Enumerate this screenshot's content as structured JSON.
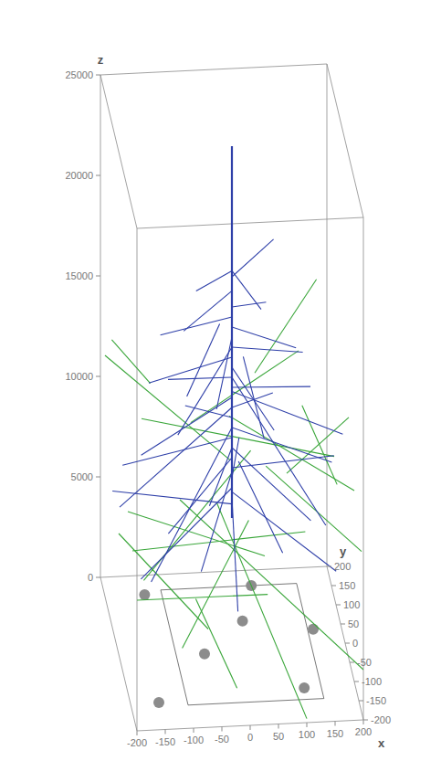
{
  "chart_data": {
    "type": "3d_line",
    "x_label": "x",
    "y_label": "y",
    "z_label": "z",
    "xlim": [
      -200,
      200
    ],
    "ylim": [
      -200,
      200
    ],
    "zlim": [
      0,
      25000
    ],
    "xticks": [
      -200,
      -150,
      -100,
      -50,
      0,
      50,
      100,
      150,
      200
    ],
    "yticks": [
      -200,
      -150,
      -100,
      -50,
      0,
      50,
      100,
      150,
      200
    ],
    "zticks": [
      0,
      5000,
      10000,
      15000,
      20000,
      25000
    ],
    "series": [
      {
        "color": "#2e3fa8",
        "segments": [
          [
            0,
            0,
            25000,
            0,
            0,
            6500
          ],
          [
            0,
            0,
            18800,
            -60,
            20,
            17500
          ],
          [
            0,
            0,
            18800,
            50,
            -10,
            17000
          ],
          [
            0,
            0,
            18500,
            80,
            40,
            19500
          ],
          [
            0,
            0,
            17800,
            -90,
            -30,
            16500
          ],
          [
            0,
            0,
            17000,
            70,
            60,
            16000
          ],
          [
            0,
            0,
            16500,
            -120,
            40,
            15000
          ],
          [
            0,
            0,
            16000,
            110,
            -20,
            15200
          ],
          [
            0,
            0,
            15500,
            -40,
            -80,
            13500
          ],
          [
            0,
            0,
            15000,
            130,
            30,
            14000
          ],
          [
            0,
            0,
            14500,
            -150,
            -20,
            13800
          ],
          [
            0,
            0,
            14000,
            60,
            -90,
            12500
          ],
          [
            0,
            0,
            13500,
            -100,
            80,
            12000
          ],
          [
            0,
            0,
            13000,
            150,
            70,
            11500
          ],
          [
            0,
            0,
            12500,
            -170,
            -60,
            11000
          ],
          [
            0,
            0,
            12000,
            90,
            110,
            10500
          ],
          [
            0,
            0,
            11500,
            -60,
            140,
            9500
          ],
          [
            0,
            0,
            11000,
            170,
            -40,
            9800
          ],
          [
            0,
            0,
            10500,
            -190,
            20,
            9000
          ],
          [
            0,
            0,
            10000,
            120,
            -120,
            8500
          ],
          [
            0,
            0,
            9500,
            -130,
            -110,
            8000
          ],
          [
            0,
            0,
            9000,
            190,
            60,
            8200
          ],
          [
            0,
            0,
            8800,
            -80,
            -160,
            7000
          ],
          [
            0,
            0,
            8500,
            40,
            170,
            7200
          ],
          [
            0,
            0,
            8000,
            -180,
            -120,
            6000
          ],
          [
            0,
            0,
            7800,
            160,
            -150,
            6500
          ],
          [
            0,
            0,
            7500,
            -20,
            -190,
            5500
          ],
          [
            0,
            0,
            7200,
            -195,
            100,
            6200
          ],
          [
            0,
            0,
            12000,
            -200,
            -10,
            7500
          ],
          [
            0,
            0,
            11000,
            -170,
            -170,
            6800
          ],
          [
            0,
            0,
            13500,
            140,
            -160,
            9000
          ],
          [
            20,
            0,
            14500,
            60,
            20,
            10000
          ],
          [
            -20,
            10,
            16000,
            -70,
            60,
            11500
          ],
          [
            10,
            -10,
            9500,
            80,
            -60,
            5800
          ],
          [
            0,
            0,
            10000,
            -30,
            60,
            6000
          ],
          [
            0,
            0,
            15000,
            -110,
            -90,
            12500
          ],
          [
            0,
            0,
            12800,
            195,
            -5,
            10500
          ]
        ]
      },
      {
        "color": "#3aa63a",
        "segments": [
          [
            -200,
            150,
            12000,
            0,
            20,
            9000
          ],
          [
            -200,
            -100,
            9000,
            50,
            -50,
            5500
          ],
          [
            -150,
            60,
            10500,
            200,
            120,
            7000
          ],
          [
            0,
            30,
            11000,
            200,
            -100,
            9500
          ],
          [
            -100,
            -50,
            8500,
            200,
            -200,
            2500
          ],
          [
            -200,
            -200,
            6500,
            60,
            -20,
            3000
          ],
          [
            -60,
            80,
            9800,
            150,
            200,
            10800
          ],
          [
            30,
            -20,
            10200,
            -180,
            -150,
            6500
          ],
          [
            50,
            60,
            12500,
            180,
            190,
            14500
          ],
          [
            -200,
            0,
            6000,
            -50,
            -50,
            2000
          ],
          [
            -80,
            -100,
            4500,
            -20,
            -180,
            1500
          ],
          [
            -200,
            -150,
            8000,
            120,
            -60,
            6800
          ],
          [
            100,
            20,
            8200,
            200,
            -40,
            12000
          ],
          [
            -180,
            200,
            11800,
            -120,
            150,
            10500
          ],
          [
            20,
            -60,
            7500,
            -120,
            -200,
            4000
          ],
          [
            60,
            0,
            9000,
            200,
            -180,
            8000
          ],
          [
            -20,
            40,
            6500,
            100,
            -200,
            200
          ],
          [
            140,
            100,
            10000,
            160,
            -160,
            11000
          ]
        ]
      }
    ],
    "detectors": {
      "color": "#8c8c8c",
      "marker": "circle",
      "x": [
        -130,
        60,
        30,
        150,
        -50,
        -150,
        110
      ],
      "y": [
        150,
        160,
        70,
        40,
        -10,
        -130,
        -110
      ]
    }
  }
}
